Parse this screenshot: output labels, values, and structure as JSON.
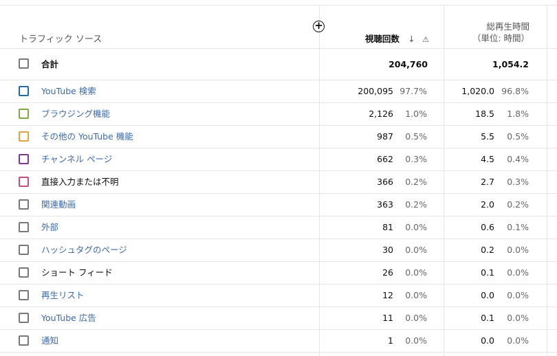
{
  "header": {
    "source": "トラフィック ソース",
    "views": "視聴回数",
    "sort_icon": "arrow-down-icon",
    "warning_icon": "warning-icon",
    "watch_line1": "総再生時間",
    "watch_line2": "（単位: 時間）",
    "add_icon": "add-circle-icon"
  },
  "total": {
    "label": "合計",
    "views": "204,760",
    "watch": "1,054.2"
  },
  "rows": [
    {
      "label": "YouTube 検索",
      "link": true,
      "color": "#1f6aa8",
      "views": "200,095",
      "vp": "97.7%",
      "watch": "1,020.0",
      "wp": "96.8%"
    },
    {
      "label": "ブラウジング機能",
      "link": true,
      "color": "#7cad3e",
      "views": "2,126",
      "vp": "1.0%",
      "watch": "18.5",
      "wp": "1.8%"
    },
    {
      "label": "その他の YouTube 機能",
      "link": true,
      "color": "#e6a23c",
      "views": "987",
      "vp": "0.5%",
      "watch": "5.5",
      "wp": "0.5%"
    },
    {
      "label": "チャンネル ページ",
      "link": true,
      "color": "#7e3a93",
      "views": "662",
      "vp": "0.3%",
      "watch": "4.5",
      "wp": "0.4%"
    },
    {
      "label": "直接入力または不明",
      "link": false,
      "color": "#c4507a",
      "views": "366",
      "vp": "0.2%",
      "watch": "2.7",
      "wp": "0.3%"
    },
    {
      "label": "関連動画",
      "link": true,
      "color": "#777777",
      "views": "363",
      "vp": "0.2%",
      "watch": "2.0",
      "wp": "0.2%"
    },
    {
      "label": "外部",
      "link": true,
      "color": "#777777",
      "views": "81",
      "vp": "0.0%",
      "watch": "0.6",
      "wp": "0.1%"
    },
    {
      "label": "ハッシュタグのページ",
      "link": true,
      "color": "#777777",
      "views": "30",
      "vp": "0.0%",
      "watch": "0.2",
      "wp": "0.0%"
    },
    {
      "label": "ショート フィード",
      "link": false,
      "color": "#777777",
      "views": "26",
      "vp": "0.0%",
      "watch": "0.1",
      "wp": "0.0%"
    },
    {
      "label": "再生リスト",
      "link": true,
      "color": "#777777",
      "views": "12",
      "vp": "0.0%",
      "watch": "0.0",
      "wp": "0.0%"
    },
    {
      "label": "YouTube 広告",
      "link": true,
      "color": "#777777",
      "views": "11",
      "vp": "0.0%",
      "watch": "0.1",
      "wp": "0.0%"
    },
    {
      "label": "通知",
      "link": true,
      "color": "#777777",
      "views": "1",
      "vp": "0.0%",
      "watch": "0.0",
      "wp": "0.0%"
    }
  ]
}
